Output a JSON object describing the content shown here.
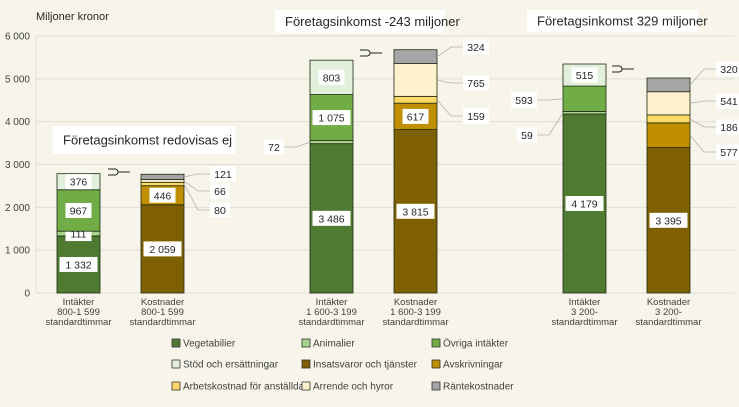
{
  "chart_data": {
    "type": "bar",
    "stacked": true,
    "ylabel": "Miljoner kronor",
    "ylim": [
      0,
      6000
    ],
    "yticks": [
      0,
      1000,
      2000,
      3000,
      4000,
      5000,
      6000
    ],
    "ytick_labels": [
      "0",
      "1 000",
      "2 000",
      "3 000",
      "4 000",
      "5 000",
      "6 000"
    ],
    "grid": true,
    "legend_position": "bottom",
    "series_meta": [
      {
        "name": "Vegetabilier",
        "color": "#4f7a31"
      },
      {
        "name": "Animalier",
        "color": "#a9d18e"
      },
      {
        "name": "Övriga intäkter",
        "color": "#70ad47"
      },
      {
        "name": "Stöd och ersättningar",
        "color": "#e2efda"
      },
      {
        "name": "Insatsvaror och tjänster",
        "color": "#7f6000"
      },
      {
        "name": "Avskrivningar",
        "color": "#bf8f00"
      },
      {
        "name": "Arbetskostnad för anställda",
        "color": "#ffd966"
      },
      {
        "name": "Arrende och hyror",
        "color": "#fff2cc"
      },
      {
        "name": "Räntekostnader",
        "color": "#a5a5a5"
      }
    ],
    "bars": [
      {
        "category": [
          "Intäkter",
          "800-1 599",
          "standardtimmar"
        ],
        "segments": [
          {
            "series": 0,
            "value": 1332,
            "text": "1 332",
            "label": "inside"
          },
          {
            "series": 1,
            "value": 111,
            "text": "111",
            "label": "inside"
          },
          {
            "series": 2,
            "value": 967,
            "text": "967",
            "label": "inside"
          },
          {
            "series": 3,
            "value": 376,
            "text": "376",
            "label": "inside"
          }
        ]
      },
      {
        "category": [
          "Kostnader",
          "800-1 599",
          "standardtimmar"
        ],
        "segments": [
          {
            "series": 4,
            "value": 2059,
            "text": "2 059",
            "label": "inside"
          },
          {
            "series": 5,
            "value": 446,
            "text": "446",
            "label": "inside"
          },
          {
            "series": 6,
            "value": 80,
            "text": "80",
            "label": "right"
          },
          {
            "series": 7,
            "value": 66,
            "text": "66",
            "label": "right"
          },
          {
            "series": 8,
            "value": 121,
            "text": "121",
            "label": "right"
          }
        ]
      },
      {
        "category": [
          "Intäkter",
          "1 600-3 199",
          "standardtimmar"
        ],
        "segments": [
          {
            "series": 0,
            "value": 3486,
            "text": "3 486",
            "label": "inside"
          },
          {
            "series": 1,
            "value": 72,
            "text": "72",
            "label": "left"
          },
          {
            "series": 2,
            "value": 1075,
            "text": "1 075",
            "label": "inside"
          },
          {
            "series": 3,
            "value": 803,
            "text": "803",
            "label": "inside"
          }
        ]
      },
      {
        "category": [
          "Kostnader",
          "1 600-3 199",
          "standardtimmar"
        ],
        "segments": [
          {
            "series": 4,
            "value": 3815,
            "text": "3 815",
            "label": "inside"
          },
          {
            "series": 5,
            "value": 617,
            "text": "617",
            "label": "inside"
          },
          {
            "series": 6,
            "value": 159,
            "text": "159",
            "label": "right"
          },
          {
            "series": 7,
            "value": 765,
            "text": "765",
            "label": "right"
          },
          {
            "series": 8,
            "value": 324,
            "text": "324",
            "label": "right"
          }
        ]
      },
      {
        "category": [
          "Intäkter",
          "3 200-",
          "standardtimmar"
        ],
        "segments": [
          {
            "series": 0,
            "value": 4179,
            "text": "4 179",
            "label": "inside"
          },
          {
            "series": 1,
            "value": 59,
            "text": "59",
            "label": "left"
          },
          {
            "series": 2,
            "value": 593,
            "text": "593",
            "label": "left"
          },
          {
            "series": 3,
            "value": 515,
            "text": "515",
            "label": "inside"
          }
        ]
      },
      {
        "category": [
          "Kostnader",
          "3 200-",
          "standardtimmar"
        ],
        "segments": [
          {
            "series": 4,
            "value": 3395,
            "text": "3 395",
            "label": "inside"
          },
          {
            "series": 5,
            "value": 577,
            "text": "577",
            "label": "right"
          },
          {
            "series": 6,
            "value": 186,
            "text": "186",
            "label": "right"
          },
          {
            "series": 7,
            "value": 541,
            "text": "541",
            "label": "right"
          },
          {
            "series": 8,
            "value": 320,
            "text": "320",
            "label": "right"
          }
        ]
      }
    ],
    "annotations": [
      "Företagsinkomst redovisas ej",
      "Företagsinkomst -243 miljoner",
      "Företagsinkomst 329 miljoner"
    ]
  }
}
